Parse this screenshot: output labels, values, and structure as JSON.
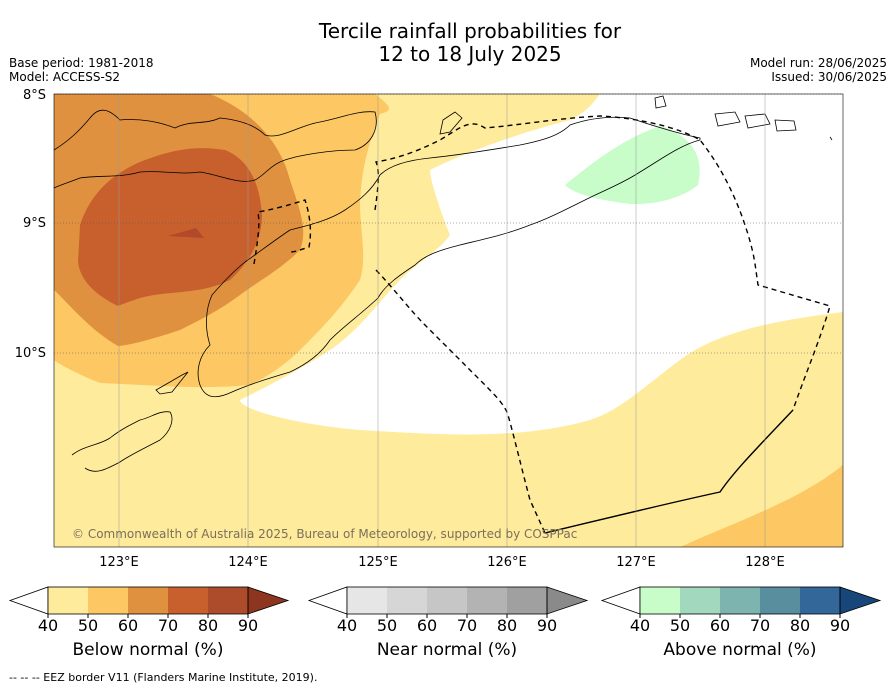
{
  "title": {
    "line1": "Tercile rainfall probabilities for",
    "line2": "12 to 18 July 2025"
  },
  "meta": {
    "base_period": "Base period: 1981-2018",
    "model": "Model: ACCESS-S2",
    "model_run": "Model run: 28/06/2025",
    "issued": "Issued: 30/06/2025"
  },
  "map": {
    "lat_labels": [
      "8°S",
      "9°S",
      "10°S"
    ],
    "lon_labels": [
      "123°E",
      "124°E",
      "125°E",
      "126°E",
      "127°E",
      "128°E"
    ],
    "copyright": "© Commonwealth of Australia 2025, Bureau of Meteorology, supported by COSPPac",
    "colors": {
      "below_50": "#ffeb9c",
      "below_60": "#fdc863",
      "below_70": "#e0913f",
      "below_80": "#c8602e",
      "above_50": "#c8fcc8",
      "land_line": "#000000",
      "grid": "#9a9a9a"
    }
  },
  "colorbars": [
    {
      "title": "Below normal (%)",
      "ticks": [
        "40",
        "50",
        "60",
        "70",
        "80",
        "90"
      ],
      "colors": [
        "#ffffff",
        "#ffeb9c",
        "#fdc863",
        "#e0913f",
        "#c8602e",
        "#ac4c2a",
        "#8e3520"
      ]
    },
    {
      "title": "Near normal (%)",
      "ticks": [
        "40",
        "50",
        "60",
        "70",
        "80",
        "90"
      ],
      "colors": [
        "#ffffff",
        "#e6e6e6",
        "#d6d6d6",
        "#c6c6c6",
        "#b3b3b3",
        "#a0a0a0",
        "#8a8a8a"
      ]
    },
    {
      "title": "Above normal (%)",
      "ticks": [
        "40",
        "50",
        "60",
        "70",
        "80",
        "90"
      ],
      "colors": [
        "#ffffff",
        "#c8fcc8",
        "#a2d8be",
        "#7eb4b0",
        "#588e9e",
        "#336699",
        "#17477a"
      ]
    }
  ],
  "footer": "--  --  -- EEZ border V11 (Flanders Marine Institute, 2019)."
}
